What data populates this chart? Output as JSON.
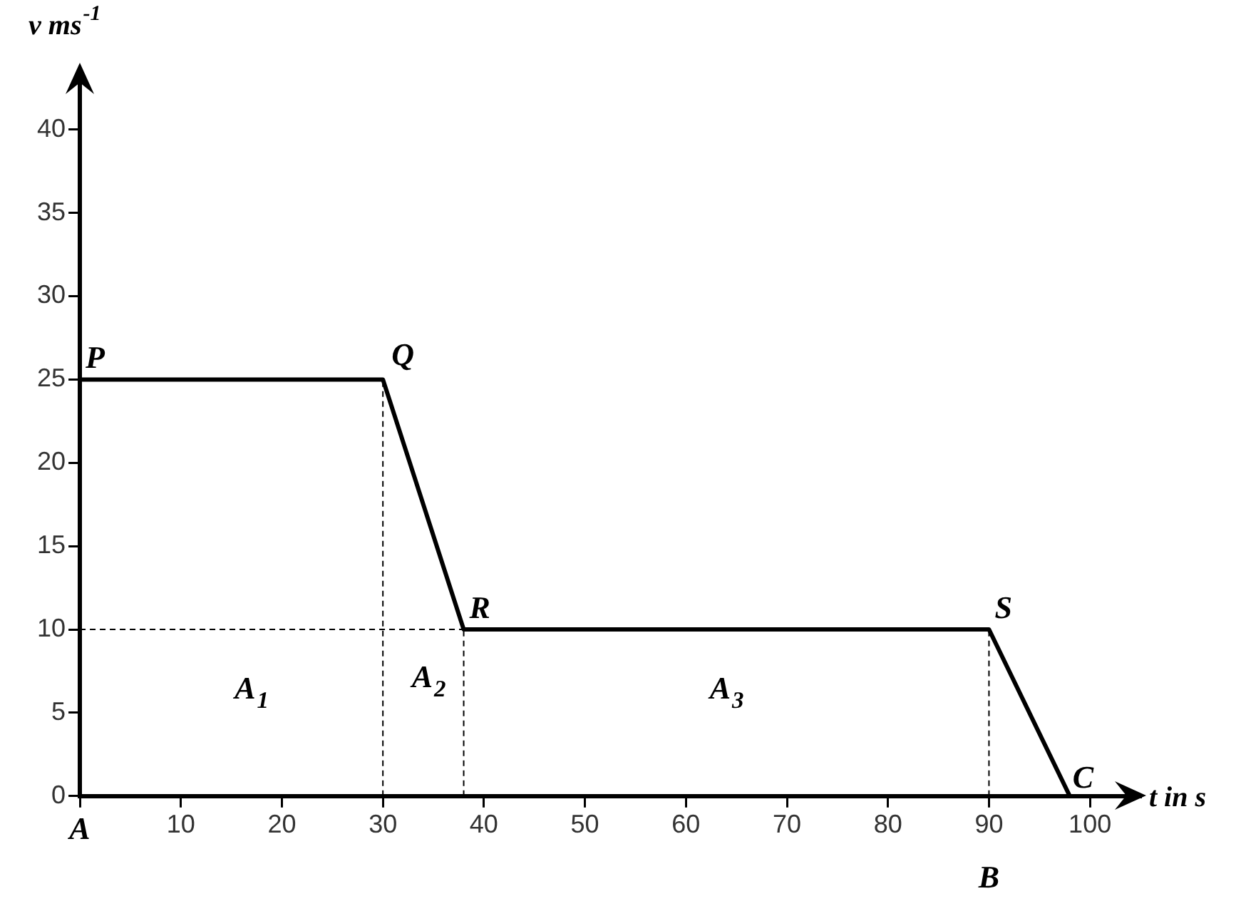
{
  "chart_data": {
    "type": "line",
    "xlabel": "t in s",
    "ylabel": "v ms$^{-1}$",
    "xlim": [
      0,
      105
    ],
    "ylim": [
      0,
      43.5
    ],
    "xticks": [
      {
        "value": 0,
        "label": null
      },
      10,
      20,
      30,
      40,
      50,
      60,
      70,
      80,
      90,
      100
    ],
    "yticks": [
      0,
      5,
      10,
      15,
      20,
      25,
      30,
      35,
      40
    ],
    "grid": false,
    "legend": false,
    "marker": "none",
    "series": [
      {
        "color": "#000000",
        "x": [
          0,
          30,
          38,
          90,
          98
        ],
        "values": [
          25,
          25,
          10,
          10,
          0
        ],
        "line_style": "solid"
      },
      {
        "color": "#000000",
        "x": [
          30,
          30
        ],
        "values": [
          0,
          25
        ],
        "line_style": "dashed"
      },
      {
        "color": "#000000",
        "x": [
          38,
          38
        ],
        "values": [
          0,
          10
        ],
        "line_style": "dashed"
      },
      {
        "color": "#000000",
        "x": [
          90,
          90
        ],
        "values": [
          0,
          10
        ],
        "line_style": "dashed"
      },
      {
        "color": "#000000",
        "x": [
          0,
          38
        ],
        "values": [
          10,
          10
        ],
        "line_style": "dashed"
      }
    ],
    "annotations": [
      {
        "text": "P",
        "x": 0,
        "y": 25
      },
      {
        "text": "Q",
        "x": 30,
        "y": 25
      },
      {
        "text": "R",
        "x": 38,
        "y": 10
      },
      {
        "text": "S",
        "x": 90,
        "y": 10
      },
      {
        "text": "C",
        "x": 98,
        "y": 0
      },
      {
        "text": "B",
        "x": 90,
        "y": 0
      },
      "A",
      "A$_{1}$",
      "A$_{2}$",
      "A$_{3}$"
    ]
  }
}
